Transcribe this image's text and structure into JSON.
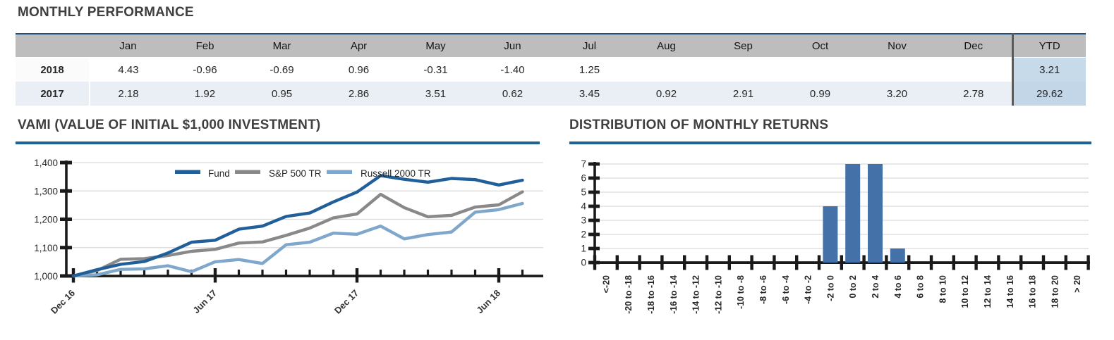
{
  "colors": {
    "accent_rule": "#1F6396",
    "table_top_border": "#1F4E79",
    "header_bg": "#BDBDBD",
    "alt_row_bg": "#E9EFF5",
    "ytd_cell_bg": "#C7DAEA",
    "ytd_separator": "#5A5A5A",
    "title_text": "#3F3F3F",
    "fund_line": "#205F9A",
    "sp500_line": "#898989",
    "russell_line": "#7FA7CB",
    "bar_fill": "#4472A8",
    "gridline": "#D9D9D9",
    "axis": "#1A1A1A"
  },
  "chart_data": [
    {
      "type": "table",
      "title": "MONTHLY PERFORMANCE",
      "columns": [
        "",
        "Jan",
        "Feb",
        "Mar",
        "Apr",
        "May",
        "Jun",
        "Jul",
        "Aug",
        "Sep",
        "Oct",
        "Nov",
        "Dec",
        "YTD"
      ],
      "rows": [
        [
          "2018",
          "4.43",
          "-0.96",
          "-0.69",
          "0.96",
          "-0.31",
          "-1.40",
          "1.25",
          "",
          "",
          "",
          "",
          "",
          "3.21"
        ],
        [
          "2017",
          "2.18",
          "1.92",
          "0.95",
          "2.86",
          "3.51",
          "0.62",
          "3.45",
          "0.92",
          "2.91",
          "0.99",
          "3.20",
          "2.78",
          "29.62"
        ]
      ]
    },
    {
      "type": "line",
      "title": "VAMI (VALUE OF INITIAL $1,000 INVESTMENT)",
      "x": [
        "Dec 16",
        "Jan 17",
        "Feb 17",
        "Mar 17",
        "Apr 17",
        "May 17",
        "Jun 17",
        "Jul 17",
        "Aug 17",
        "Sep 17",
        "Oct 17",
        "Nov 17",
        "Dec 17",
        "Jan 18",
        "Feb 18",
        "Mar 18",
        "Apr 18",
        "May 18",
        "Jun 18",
        "Jul 18"
      ],
      "x_ticks": {
        "indices": [
          0,
          6,
          12,
          18
        ],
        "labels": [
          "Dec 16",
          "Jun 17",
          "Dec 17",
          "Jun 18"
        ]
      },
      "y_ticks": {
        "values": [
          1000,
          1100,
          1200,
          1300,
          1400
        ],
        "labels": [
          "1,000",
          "1,100",
          "1,200",
          "1,300",
          "1,400"
        ]
      },
      "ylim": [
        1000,
        1400
      ],
      "grid": true,
      "legend_position": "top",
      "series": [
        {
          "name": "Fund",
          "color_key": "fund_line",
          "values": [
            1000,
            1022,
            1041,
            1051,
            1081,
            1119,
            1126,
            1165,
            1176,
            1210,
            1222,
            1261,
            1296,
            1354,
            1341,
            1331,
            1344,
            1340,
            1321,
            1338
          ]
        },
        {
          "name": "S&P 500 TR",
          "color_key": "sp500_line",
          "values": [
            1000,
            1019,
            1059,
            1061,
            1072,
            1087,
            1094,
            1116,
            1120,
            1143,
            1169,
            1205,
            1219,
            1288,
            1241,
            1209,
            1214,
            1243,
            1251,
            1297
          ]
        },
        {
          "name": "Russell 2000 TR",
          "color_key": "russell_line",
          "values": [
            1000,
            1004,
            1023,
            1025,
            1036,
            1015,
            1050,
            1058,
            1044,
            1110,
            1119,
            1151,
            1147,
            1176,
            1131,
            1146,
            1155,
            1225,
            1234,
            1256
          ]
        }
      ]
    },
    {
      "type": "bar",
      "title": "DISTRIBUTION OF MONTHLY RETURNS",
      "categories": [
        "<-20",
        "-20 to -18",
        "-18 to -16",
        "-16 to -14",
        "-14 to -12",
        "-12 to -10",
        "-10 to -8",
        "-8 to -6",
        "-6 to -4",
        "-4 to -2",
        "-2 to 0",
        "0 to 2",
        "2 to 4",
        "4 to 6",
        "6 to 8",
        "8 to 10",
        "10 to 12",
        "12 to 14",
        "14 to 16",
        "16 to 18",
        "18 to 20",
        "> 20"
      ],
      "values": [
        0,
        0,
        0,
        0,
        0,
        0,
        0,
        0,
        0,
        0,
        4,
        7,
        7,
        1,
        0,
        0,
        0,
        0,
        0,
        0,
        0,
        0
      ],
      "y_ticks": [
        "0",
        "1",
        "2",
        "3",
        "4",
        "5",
        "6",
        "7"
      ],
      "ylim": [
        0,
        7
      ],
      "grid": true
    }
  ]
}
